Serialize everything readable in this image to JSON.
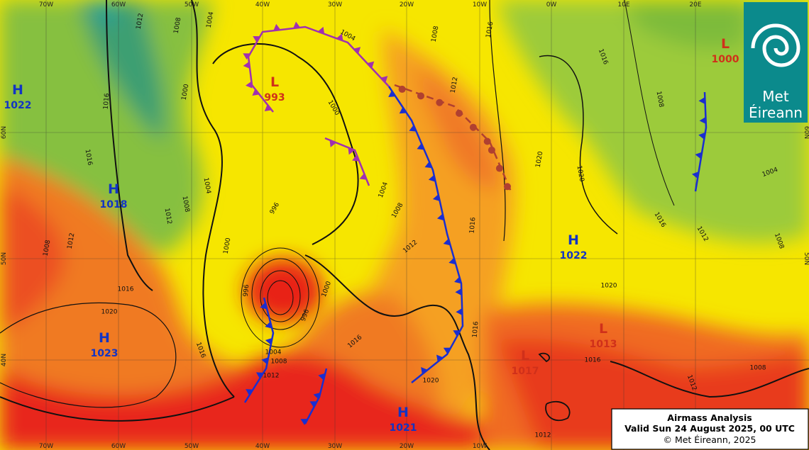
{
  "title_box": {
    "title": "Airmass Analysis",
    "valid": "Valid Sun 24 August 2025, 00 UTC",
    "copyright": "© Met Éireann, 2025"
  },
  "logo": {
    "line1": "Met",
    "line2": "Éireann"
  },
  "longitudes_top": [
    "70W",
    "60W",
    "50W",
    "40W",
    "30W",
    "20W",
    "10W",
    "0W",
    "10E",
    "20E"
  ],
  "longitudes_bottom": [
    "70W",
    "60W",
    "50W",
    "40W",
    "30W",
    "20W",
    "10W"
  ],
  "latitudes": [
    "60N",
    "50N",
    "40N"
  ],
  "pressure_centers": [
    {
      "type": "H",
      "pressure": 1022
    },
    {
      "type": "L",
      "pressure": 993
    },
    {
      "type": "H",
      "pressure": 1018
    },
    {
      "type": "H",
      "pressure": 1022
    },
    {
      "type": "H",
      "pressure": 1023
    },
    {
      "type": "H",
      "pressure": 1021
    },
    {
      "type": "L",
      "pressure": 1000
    },
    {
      "type": "L",
      "pressure": 1013
    },
    {
      "type": "L",
      "pressure": 1017
    }
  ],
  "isobar_labels": [
    "1012",
    "1008",
    "1004",
    "1004",
    "1000",
    "1000",
    "1016",
    "1016",
    "1012",
    "1008",
    "1004",
    "996",
    "1000",
    "1004",
    "1008",
    "1012",
    "1016",
    "1020",
    "1016",
    "1008",
    "1016",
    "1012",
    "1004",
    "1008",
    "1020",
    "1016",
    "1016",
    "1016",
    "1020",
    "1012",
    "1016",
    "1012",
    "1008",
    "1016",
    "1020",
    "1000",
    "996",
    "996",
    "1012",
    "1008",
    "1004",
    "1016",
    "1012",
    "1008",
    "1020",
    "1008",
    "1012"
  ]
}
